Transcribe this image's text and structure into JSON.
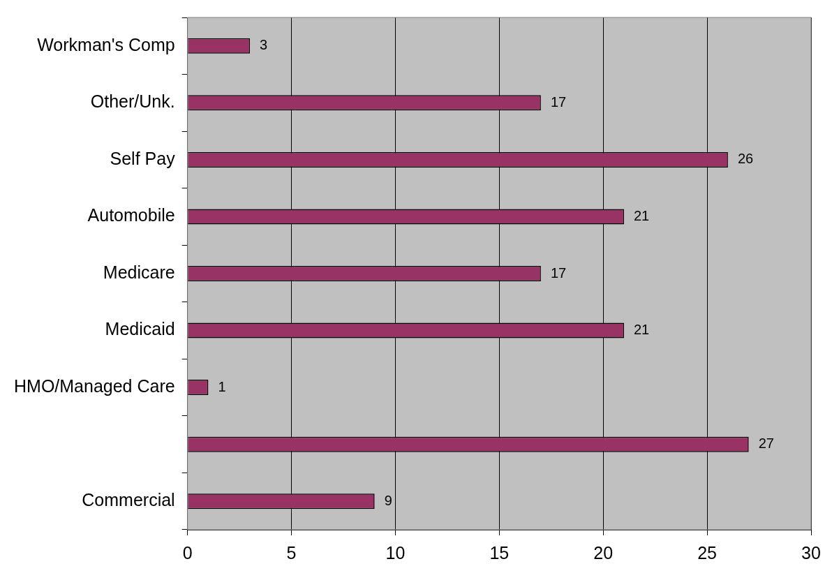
{
  "chart_data": {
    "type": "bar",
    "orientation": "horizontal",
    "categories": [
      "Workman's Comp",
      "Other/Unk.",
      "Self Pay",
      "Automobile",
      "Medicare",
      "Medicaid",
      "HMO/Managed Care",
      null,
      "Commercial"
    ],
    "values": [
      3,
      17,
      26,
      21,
      17,
      21,
      1,
      27,
      9
    ],
    "color": "#993366",
    "xlim": [
      0,
      30
    ],
    "xticks": [
      0,
      5,
      10,
      15,
      20,
      25,
      30
    ],
    "grid": "x",
    "legend": false,
    "data_labels": true
  }
}
